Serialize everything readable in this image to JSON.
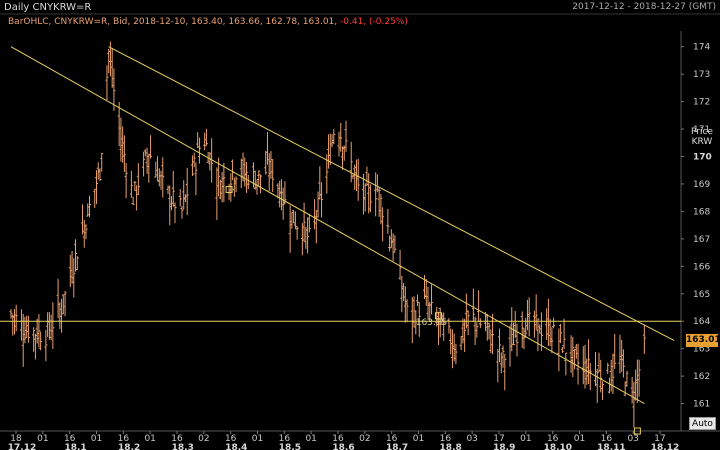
{
  "header": {
    "title": "Daily CNYKRW=R",
    "date_range": "2017-12-12 - 2018-12-27 (GMT)"
  },
  "legend": {
    "name": "BarOHLC, CNYKRW=R, Bid,",
    "values": "2018-12-10, 163.40, 163.66, 162.78, 163.01,",
    "change": "-0.41, (-0.25%)"
  },
  "price_axis": {
    "header_line1": "Price",
    "header_line2": "KRW",
    "current_price": "163.01",
    "current_price_color": "#e8a030"
  },
  "auto_button": "Auto",
  "colors": {
    "background": "#000000",
    "bars": "#e8a070",
    "trendlines": "#e8d060",
    "grid": "#333333"
  },
  "chart_data": {
    "type": "ohlc_bar",
    "symbol": "CNYKRW=R",
    "ylim": [
      160,
      174.5
    ],
    "y_ticks": [
      "161",
      "162",
      "163",
      "164",
      "165",
      "166",
      "167",
      "168",
      "169",
      "170",
      "171",
      "172",
      "173",
      "174"
    ],
    "bold_tick": "170",
    "x_day_labels": [
      "18",
      "01",
      "16",
      "01",
      "16",
      "01",
      "16",
      "02",
      "16",
      "01",
      "16",
      "01",
      "16",
      "02",
      "16",
      "01",
      "16",
      "03",
      "17",
      "01",
      "16",
      "01",
      "16",
      "03",
      "17"
    ],
    "x_month_labels": [
      "17.12",
      "18.1",
      "18.2",
      "18.3",
      "18.4",
      "18.5",
      "18.6",
      "18.7",
      "18.8",
      "18.9",
      "18.10",
      "18.11",
      "18.12"
    ],
    "horizontal_line": {
      "value": 164.0,
      "label": "163.95"
    },
    "close_path": [
      [
        "2017-12-12",
        164.3
      ],
      [
        "2017-12-20",
        163.7
      ],
      [
        "2018-01-01",
        163.5
      ],
      [
        "2018-01-10",
        164.5
      ],
      [
        "2018-01-20",
        166.8
      ],
      [
        "2018-02-01",
        169.5
      ],
      [
        "2018-02-06",
        173.8
      ],
      [
        "2018-02-12",
        171.0
      ],
      [
        "2018-02-20",
        168.5
      ],
      [
        "2018-03-01",
        170.2
      ],
      [
        "2018-03-10",
        168.8
      ],
      [
        "2018-03-20",
        168.0
      ],
      [
        "2018-04-01",
        170.8
      ],
      [
        "2018-04-10",
        169.0
      ],
      [
        "2018-04-20",
        169.5
      ],
      [
        "2018-05-01",
        169.2
      ],
      [
        "2018-05-10",
        169.6
      ],
      [
        "2018-05-20",
        168.0
      ],
      [
        "2018-06-01",
        167.0
      ],
      [
        "2018-06-10",
        169.0
      ],
      [
        "2018-06-16",
        171.3
      ],
      [
        "2018-06-22",
        170.3
      ],
      [
        "2018-07-01",
        168.5
      ],
      [
        "2018-07-10",
        168.8
      ],
      [
        "2018-07-20",
        166.5
      ],
      [
        "2018-07-28",
        164.0
      ],
      [
        "2018-08-06",
        164.7
      ],
      [
        "2018-08-16",
        163.8
      ],
      [
        "2018-08-25",
        163.0
      ],
      [
        "2018-09-01",
        164.2
      ],
      [
        "2018-09-10",
        163.8
      ],
      [
        "2018-09-20",
        162.6
      ],
      [
        "2018-10-01",
        164.0
      ],
      [
        "2018-10-10",
        163.8
      ],
      [
        "2018-10-20",
        163.5
      ],
      [
        "2018-11-01",
        162.5
      ],
      [
        "2018-11-10",
        162.2
      ],
      [
        "2018-11-20",
        162.0
      ],
      [
        "2018-11-26",
        162.6
      ],
      [
        "2018-12-03",
        161.2
      ],
      [
        "2018-12-10",
        163.01
      ]
    ],
    "trendlines": [
      {
        "from": [
          "2017-12-12",
          174.0
        ],
        "to": [
          "2018-12-10",
          161.0
        ]
      },
      {
        "from": [
          "2018-02-06",
          174.0
        ],
        "to": [
          "2018-12-27",
          163.3
        ]
      }
    ],
    "markers": [
      [
        "2018-04-16",
        168.8
      ],
      [
        "2018-08-14",
        164.2
      ],
      [
        "2018-12-06",
        160.0
      ]
    ]
  }
}
